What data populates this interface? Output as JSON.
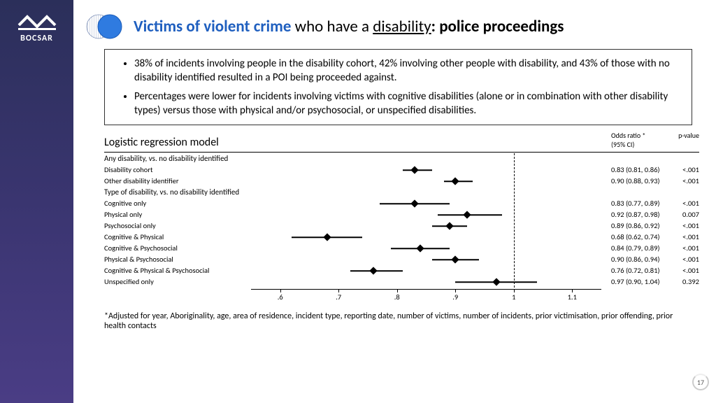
{
  "brand": "BOCSAR",
  "title": {
    "part1": "Victims of violent crime",
    "part2": " who have a ",
    "part3": "disability",
    "part4": ": police proceedings"
  },
  "bullets": [
    "38% of incidents involving people in the disability cohort, 42% involving other people with disability, and 43% of those with no disability identified resulted in a POI being proceeded against.",
    "Percentages were lower for incidents involving victims with cognitive disabilities (alone or in combination with other disability types) versus those with physical and/or psychosocial, or unspecified disabilities."
  ],
  "chart": {
    "title": "Logistic regression model",
    "col_or_label1": "Odds ratio *",
    "col_or_label2": "(95% CI)",
    "col_pv_label": "p-value",
    "xmin": 0.55,
    "xmax": 1.15,
    "ref": 1.0,
    "ticks": [
      0.6,
      0.7,
      0.8,
      0.9,
      1.0,
      1.1
    ],
    "tick_labels": [
      ".6",
      ".7",
      ".8",
      ".9",
      "1",
      "1.1"
    ],
    "rows": [
      {
        "type": "group",
        "label": "Any disability, vs. no disability identified"
      },
      {
        "type": "data",
        "label": "Disability cohort",
        "or": 0.83,
        "lo": 0.81,
        "hi": 0.86,
        "or_text": "0.83 (0.81, 0.86)",
        "pv": "<.001"
      },
      {
        "type": "data",
        "label": "Other disability identifier",
        "or": 0.9,
        "lo": 0.88,
        "hi": 0.93,
        "or_text": "0.90 (0.88, 0.93)",
        "pv": "<.001"
      },
      {
        "type": "group",
        "label": "Type of disability, vs. no disability identified"
      },
      {
        "type": "data",
        "label": "Cognitive only",
        "or": 0.83,
        "lo": 0.77,
        "hi": 0.89,
        "or_text": "0.83 (0.77, 0.89)",
        "pv": "<.001"
      },
      {
        "type": "data",
        "label": "Physical only",
        "or": 0.92,
        "lo": 0.87,
        "hi": 0.98,
        "or_text": "0.92 (0.87, 0.98)",
        "pv": "0.007"
      },
      {
        "type": "data",
        "label": "Psychosocial only",
        "or": 0.89,
        "lo": 0.86,
        "hi": 0.92,
        "or_text": "0.89 (0.86, 0.92)",
        "pv": "<.001"
      },
      {
        "type": "data",
        "label": "Cognitive & Physical",
        "or": 0.68,
        "lo": 0.62,
        "hi": 0.74,
        "or_text": "0.68 (0.62, 0.74)",
        "pv": "<.001"
      },
      {
        "type": "data",
        "label": "Cognitive & Psychosocial",
        "or": 0.84,
        "lo": 0.79,
        "hi": 0.89,
        "or_text": "0.84 (0.79, 0.89)",
        "pv": "<.001"
      },
      {
        "type": "data",
        "label": "Physical & Psychosocial",
        "or": 0.9,
        "lo": 0.86,
        "hi": 0.94,
        "or_text": "0.90 (0.86, 0.94)",
        "pv": "<.001"
      },
      {
        "type": "data",
        "label": "Cognitive & Physical & Psychosocial",
        "or": 0.76,
        "lo": 0.72,
        "hi": 0.81,
        "or_text": "0.76 (0.72, 0.81)",
        "pv": "<.001"
      },
      {
        "type": "data",
        "label": "Unspecified only",
        "or": 0.97,
        "lo": 0.9,
        "hi": 1.04,
        "or_text": "0.97 (0.90, 1.04)",
        "pv": "0.392"
      }
    ]
  },
  "footnote": "*Adjusted for year, Aboriginality, age, area of residence, incident type, reporting date, number of victims, number of incidents, prior victimisation, prior offending, prior health contacts",
  "page": "17",
  "colors": {
    "sidebar_top": "#2b2f5a",
    "sidebar_bot": "#4a3d85",
    "title_blue": "#1f5fbf",
    "venn_light": "#c8d8f0",
    "venn_dark": "#2f7be0",
    "line": "#000000"
  }
}
